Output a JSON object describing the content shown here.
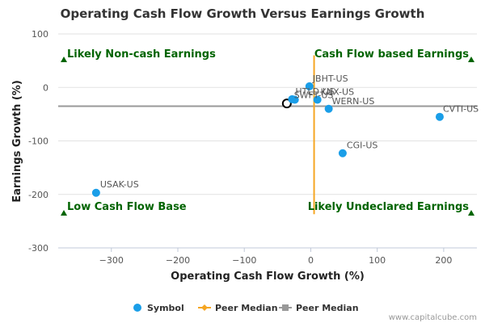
{
  "chart_data": {
    "type": "scatter",
    "title": "Operating Cash Flow Growth Versus Earnings Growth",
    "xlabel": "Operating Cash Flow Growth (%)",
    "ylabel": "Earnings Growth (%)",
    "xlim": [
      -380,
      250
    ],
    "ylim": [
      -300,
      100
    ],
    "xticks": [
      -300,
      -200,
      -100,
      0,
      100,
      200
    ],
    "yticks": [
      100,
      0,
      -100,
      -200,
      -300
    ],
    "grid": "horizontal",
    "points": [
      {
        "label": "JBHT-US",
        "x": -2,
        "y": 2
      },
      {
        "label": "HTLD-US",
        "x": -28,
        "y": -22
      },
      {
        "label": "KNX-US",
        "x": 10,
        "y": -23
      },
      {
        "label": "SWFT-US",
        "x": -24,
        "y": -23
      },
      {
        "label": "WERN-US",
        "x": 27,
        "y": -40
      },
      {
        "label": "CVTI-US",
        "x": 194,
        "y": -55
      },
      {
        "label": "CGI-US",
        "x": 48,
        "y": -123
      },
      {
        "label": "USAK-US",
        "x": -323,
        "y": -197
      }
    ],
    "highlight": {
      "x": -36,
      "y": -30
    },
    "peer_median_x": 5,
    "peer_median_y": -35,
    "quadrants": {
      "top_left": "Likely Non-cash Earnings",
      "top_right": "Cash Flow based Earnings",
      "bottom_left": "Low Cash Flow Base",
      "bottom_right": "Likely Undeclared Earnings"
    },
    "legend": {
      "placement": "bottom-center",
      "items": [
        {
          "name": "Symbol",
          "color": "#1a9ee8"
        },
        {
          "name": "Peer Median",
          "color": "#f5a623"
        },
        {
          "name": "Peer Median",
          "color": "#999999"
        }
      ]
    },
    "colors": {
      "point": "#1a9ee8",
      "median_x_line": "#f5a623",
      "median_y_line": "#999999",
      "quadrant": "#006400"
    }
  },
  "credit": "www.capitalcube.com"
}
